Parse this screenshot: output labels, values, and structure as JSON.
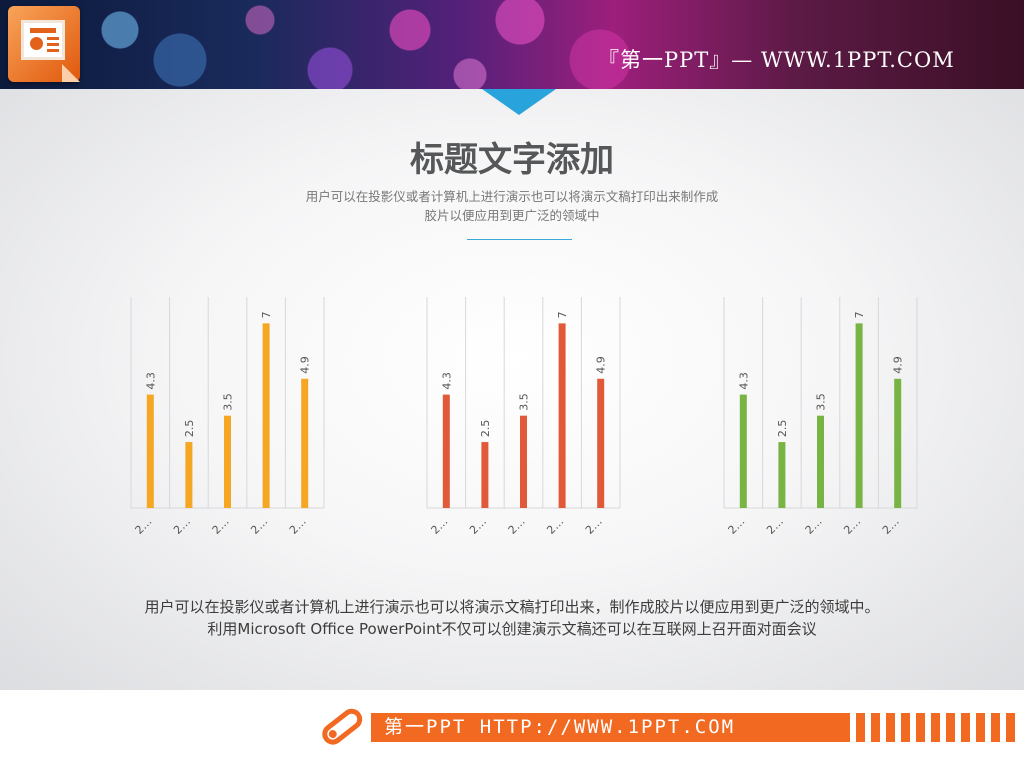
{
  "header": {
    "brand_text": "『第一PPT』— WWW.1PPT.COM"
  },
  "logo": {
    "icon": "presentation-icon",
    "color": "#f07a2a"
  },
  "slide": {
    "title": "标题文字添加",
    "subtitle_line1": "用户可以在投影仪或者计算机上进行演示也可以将演示文稿打印出来制作成",
    "subtitle_line2": "胶片以便应用到更广泛的领域中",
    "body_line1": "用户可以在投影仪或者计算机上进行演示也可以将演示文稿打印出来，制作成胶片以便应用到更广泛的领域中。",
    "body_line2": "利用Microsoft Office PowerPoint不仅可以创建演示文稿还可以在互联网上召开面对面会议"
  },
  "chart_data": [
    {
      "type": "bar",
      "categories": [
        "2…",
        "2…",
        "2…",
        "2…",
        "2…"
      ],
      "values": [
        4.3,
        2.5,
        3.5,
        7,
        4.9
      ],
      "ylim": [
        0,
        8
      ],
      "color": "#f5a623",
      "grid": "vertical",
      "data_labels": true
    },
    {
      "type": "bar",
      "categories": [
        "2…",
        "2…",
        "2…",
        "2…",
        "2…"
      ],
      "values": [
        4.3,
        2.5,
        3.5,
        7,
        4.9
      ],
      "ylim": [
        0,
        8
      ],
      "color": "#e05a3a",
      "grid": "vertical",
      "data_labels": true
    },
    {
      "type": "bar",
      "categories": [
        "2…",
        "2…",
        "2…",
        "2…",
        "2…"
      ],
      "values": [
        4.3,
        2.5,
        3.5,
        7,
        4.9
      ],
      "ylim": [
        0,
        8
      ],
      "color": "#78b443",
      "grid": "vertical",
      "data_labels": true
    }
  ],
  "footer": {
    "text": "第一PPT HTTP://WWW.1PPT.COM",
    "icon": "pen-icon",
    "accent": "#f26a21"
  }
}
